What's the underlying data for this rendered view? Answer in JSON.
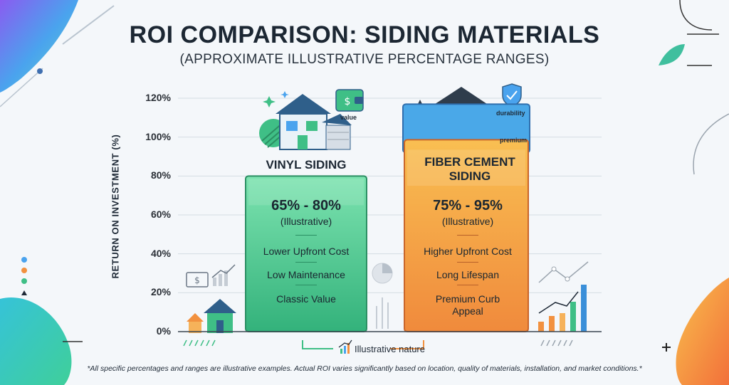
{
  "title": "ROI COMPARISON: SIDING MATERIALS",
  "subtitle": "(APPROXIMATE ILLUSTRATIVE PERCENTAGE RANGES)",
  "footnote": "*All specific percentages and ranges are illustrative examples. Actual ROI varies significantly based on location, quality of materials, installation, and market conditions.*",
  "legend_note": "Illustrative nature",
  "colors": {
    "vinyl_fill": "#3fbf86",
    "vinyl_fill_light": "#6fdca6",
    "fiber_fill": "#f2913f",
    "fiber_fill_light": "#f8b64c",
    "fiber_header": "#4aa8e8",
    "grid": "#d5dce3"
  },
  "chart_data": {
    "type": "bar",
    "title": "ROI COMPARISON: SIDING MATERIALS",
    "subtitle": "(APPROXIMATE ILLUSTRATIVE PERCENTAGE RANGES)",
    "ylabel": "RETURN ON INVESTMENT (%)",
    "xlabel": "",
    "ylim": [
      0,
      120
    ],
    "yticks": [
      "0%",
      "20%",
      "40%",
      "60%",
      "80%",
      "100%",
      "120%"
    ],
    "grid": true,
    "categories": [
      "VINYL SIDING",
      "FIBER CEMENT SIDING"
    ],
    "ranges": [
      [
        65,
        80
      ],
      [
        75,
        95
      ]
    ],
    "range_labels": [
      "65% - 80%",
      "75% - 95%"
    ],
    "range_note": "(Illustrative)",
    "features": [
      [
        "Lower Upfront Cost",
        "Low Maintenance",
        "Classic Value"
      ],
      [
        "Higher Upfront Cost",
        "Long Lifespan",
        "Premium Curb Appeal"
      ]
    ],
    "icon_labels": [
      "value",
      "durability",
      "premium"
    ]
  }
}
